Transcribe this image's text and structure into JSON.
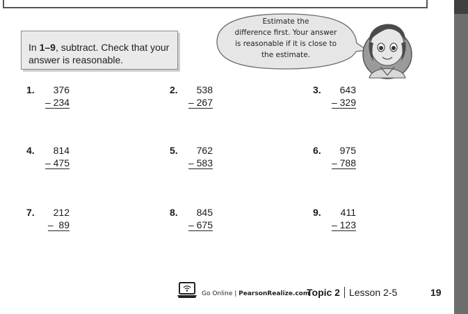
{
  "instructions": {
    "range": "1–9",
    "prefix": "In ",
    "suffix": ", subtract. Check that your answer is reasonable."
  },
  "speech_bubble": {
    "lines": [
      "Estimate the",
      "difference first. Your answer",
      "is reasonable if it is close to",
      "the estimate."
    ]
  },
  "problems": [
    {
      "number": "1.",
      "minuend": "376",
      "subtrahend": "– 234"
    },
    {
      "number": "2.",
      "minuend": "538",
      "subtrahend": "– 267"
    },
    {
      "number": "3.",
      "minuend": "643",
      "subtrahend": "– 329"
    },
    {
      "number": "4.",
      "minuend": "814",
      "subtrahend": "– 475"
    },
    {
      "number": "5.",
      "minuend": "762",
      "subtrahend": "– 583"
    },
    {
      "number": "6.",
      "minuend": "975",
      "subtrahend": "– 788"
    },
    {
      "number": "7.",
      "minuend": "212",
      "subtrahend": "–  89"
    },
    {
      "number": "8.",
      "minuend": "845",
      "subtrahend": "– 675"
    },
    {
      "number": "9.",
      "minuend": "411",
      "subtrahend": "– 123"
    }
  ],
  "footer": {
    "go_online": "Go Online",
    "site": "PearsonRealize.com",
    "topic": "Topic 2",
    "lesson": "Lesson 2-5",
    "page": "19"
  },
  "icons": {
    "laptop": "laptop-wifi-icon",
    "avatar": "student-avatar"
  }
}
